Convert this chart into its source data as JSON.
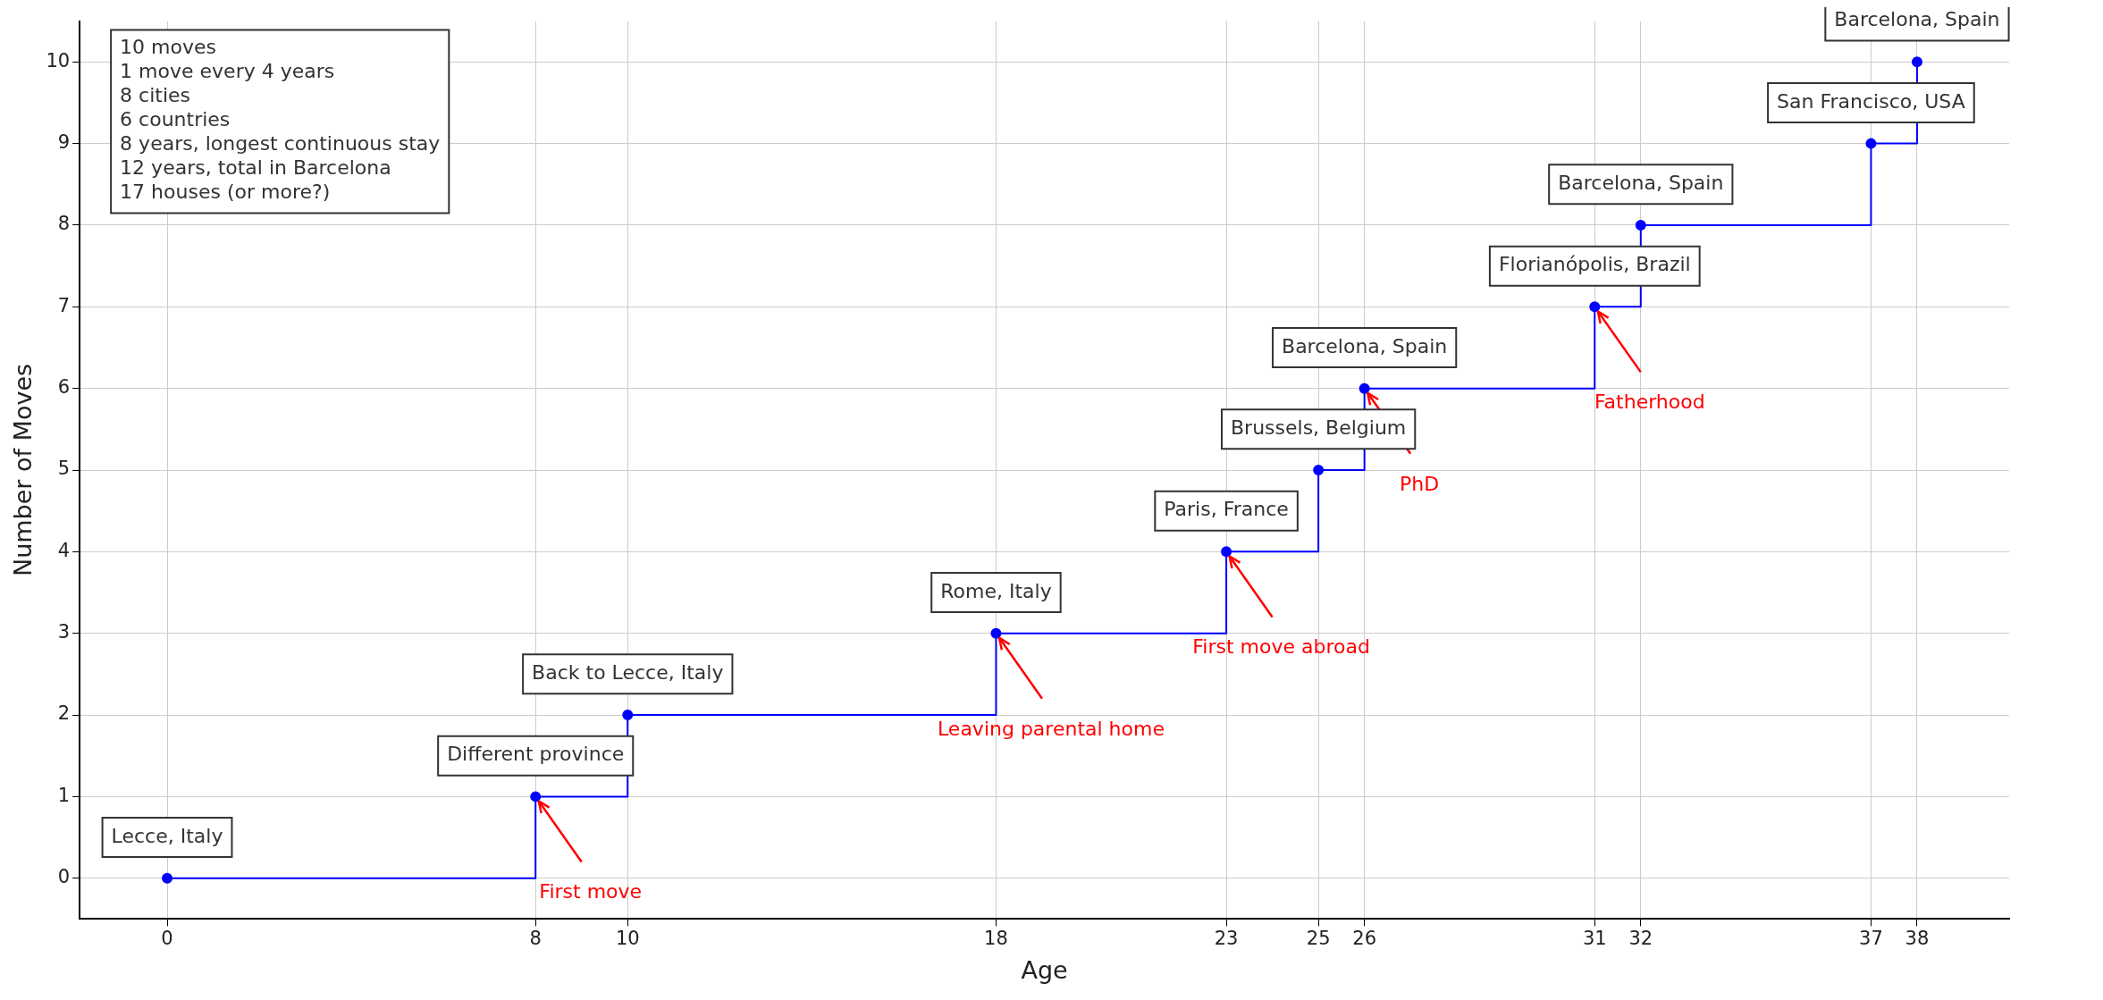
{
  "chart_data": {
    "type": "step",
    "xlabel": "Age",
    "ylabel": "Number of Moves",
    "x": [
      0,
      8,
      10,
      18,
      23,
      25,
      26,
      31,
      32,
      37,
      38
    ],
    "series": [
      {
        "color": "#0000ff",
        "values": [
          0,
          1,
          2,
          3,
          4,
          5,
          6,
          7,
          8,
          9,
          10
        ],
        "value_labels": [
          "Lecce, Italy",
          "Different province",
          "Back to Lecce, Italy",
          "Rome, Italy",
          "Paris, France",
          "Brussels, Belgium",
          "Barcelona, Spain",
          "Florianópolis, Brazil",
          "Barcelona, Spain",
          "San Francisco, USA",
          "Barcelona, Spain"
        ]
      }
    ],
    "xlim": [
      -1.9,
      40
    ],
    "xticks": [
      0,
      8,
      10,
      18,
      23,
      25,
      26,
      31,
      32,
      37,
      38
    ],
    "ylim": [
      -0.5,
      10.5
    ],
    "yticks": [
      0,
      1,
      2,
      3,
      4,
      5,
      6,
      7,
      8,
      9,
      10
    ],
    "grid": true,
    "legend": false,
    "marker": "circle",
    "line_style": "solid",
    "annotations": [
      "10 moves",
      "1 move every 4 years",
      "8 cities",
      "6 countries",
      "8 years, longest continuous stay",
      "12 years, total in Barcelona",
      "17 houses (or more?)",
      {
        "text": "First move",
        "x": 8,
        "y": 1
      },
      {
        "text": "Leaving parental home",
        "x": 18,
        "y": 3
      },
      {
        "text": "First move abroad",
        "x": 23,
        "y": 4
      },
      {
        "text": "PhD",
        "x": 26,
        "y": 6
      },
      {
        "text": "Fatherhood",
        "x": 31,
        "y": 7
      }
    ]
  }
}
